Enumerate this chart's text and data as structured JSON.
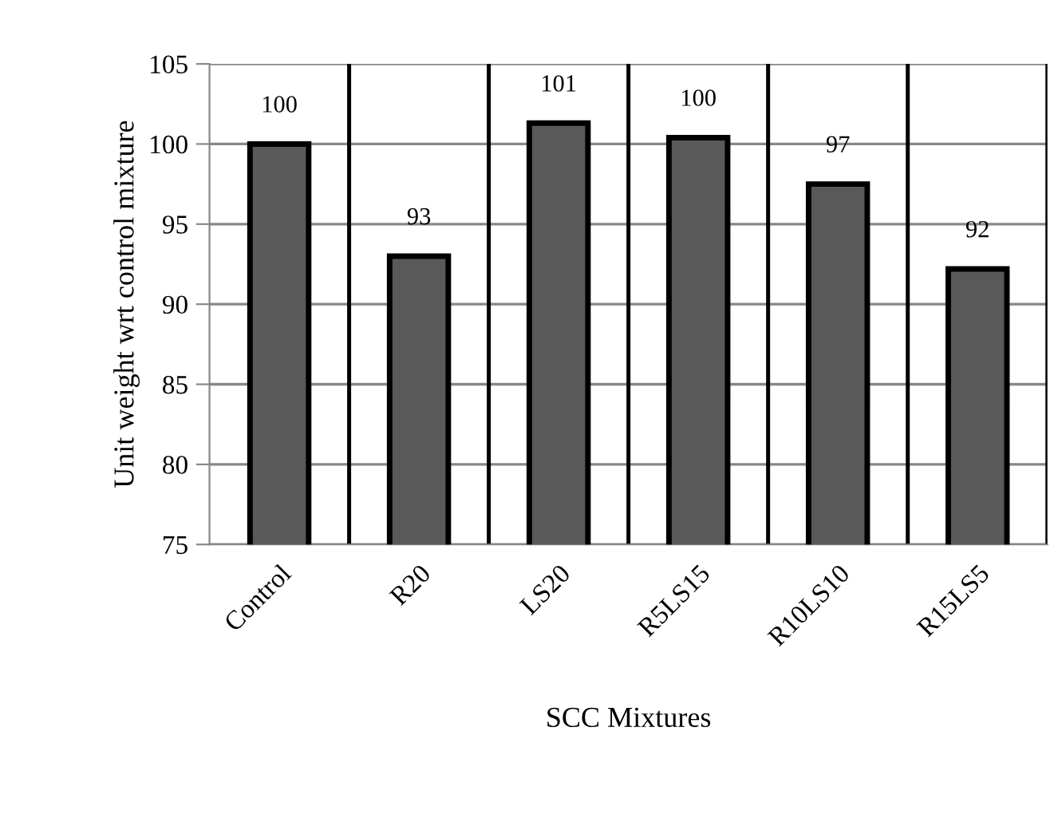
{
  "chart_data": {
    "type": "bar",
    "xlabel": "SCC Mixtures",
    "ylabel": "Unit weight wrt control mixture",
    "categories": [
      "Control",
      "R20",
      "LS20",
      "R5LS15",
      "R10LS10",
      "R15LS5"
    ],
    "values": [
      100,
      93,
      101.3,
      100.4,
      97.5,
      92.2
    ],
    "value_labels": [
      "100",
      "93",
      "101",
      "100",
      "97",
      "92"
    ],
    "color": "#595959",
    "ylim": [
      75,
      105
    ],
    "yticks": [
      75,
      80,
      85,
      90,
      95,
      100,
      105
    ],
    "grid": true
  }
}
